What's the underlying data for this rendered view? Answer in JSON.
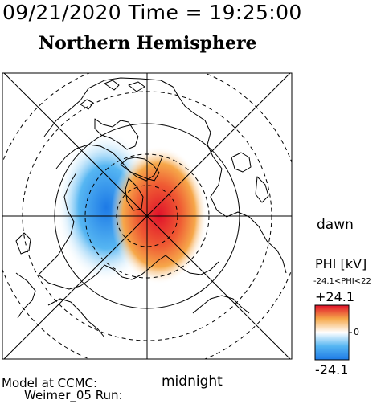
{
  "header": {
    "datetime": "09/21/2020 Time = 19:25:00",
    "hemisphere": "Northern Hemisphere"
  },
  "map": {
    "side_label": "dawn",
    "bottom_label": "midnight",
    "pattern": {
      "negative_cell": "dusk-side negative potential cell",
      "positive_cell": "dawn-side positive potential cell"
    }
  },
  "colorbar": {
    "title": "PHI [kV]",
    "range_text": "-24.1<PHI<22",
    "max_label": "+24.1",
    "mid_label": "0",
    "min_label": "-24.1",
    "max_value": 24.1,
    "min_value": -24.1,
    "colors": {
      "high": "#e0122a",
      "upper": "#f6a84a",
      "mid": "#ffffff",
      "lower": "#56b6f2",
      "low": "#1d7ae6"
    }
  },
  "footer": {
    "model_line": "Model at CCMC:",
    "run_line": "Weimer_05 Run:"
  },
  "icons": {
    "grid": "polar-grid-icon",
    "coast": "coastline-icon"
  }
}
